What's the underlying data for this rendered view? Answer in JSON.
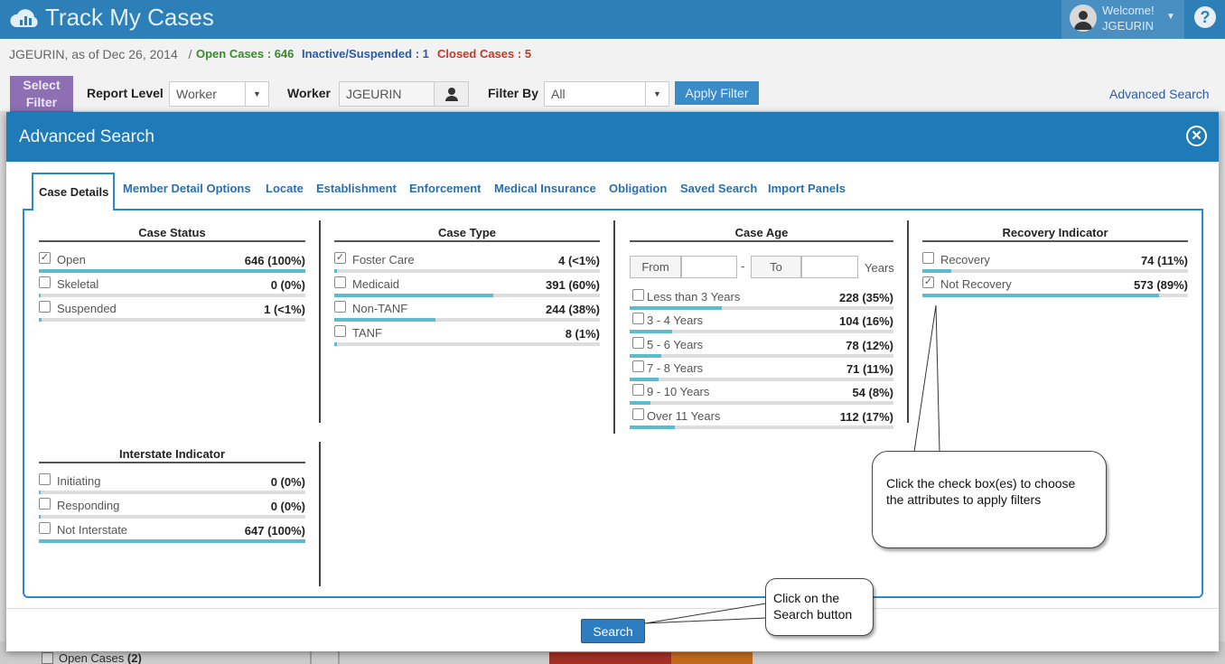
{
  "app": {
    "title": "Track My Cases"
  },
  "user": {
    "welcome": "Welcome!",
    "name": "JGEURIN"
  },
  "subheader": {
    "as_of": "JGEURIN, as of Dec 26, 2014",
    "separator": "/",
    "open_cases": "Open Cases : 646",
    "inactive": "Inactive/Suspended : 1",
    "closed": "Closed Cases : 5"
  },
  "filter_bar": {
    "select_filter": "Select Filter",
    "report_level_label": "Report Level",
    "report_level_value": "Worker",
    "worker_label": "Worker",
    "worker_value": "JGEURIN",
    "filter_by_label": "Filter By",
    "filter_by_value": "All",
    "apply_filter": "Apply Filter",
    "advanced_search": "Advanced Search"
  },
  "background": {
    "open_cases_item": "Open Cases",
    "open_cases_count": "(2)"
  },
  "modal": {
    "title": "Advanced Search",
    "tabs": [
      "Case Details",
      "Member Detail Options",
      "Locate",
      "Establishment",
      "Enforcement",
      "Medical Insurance",
      "Obligation",
      "Saved Search",
      "Import Panels"
    ],
    "active_tab": "Case Details",
    "search_button": "Search"
  },
  "sections": {
    "case_status": {
      "title": "Case Status",
      "items": [
        {
          "label": "Open",
          "value": "646 (100%)",
          "checked": true,
          "fill": 1.0
        },
        {
          "label": "Skeletal",
          "value": "0 (0%)",
          "checked": false,
          "fill": 0.0
        },
        {
          "label": "Suspended",
          "value": "1 (<1%)",
          "checked": false,
          "fill": 0.004
        }
      ]
    },
    "case_type": {
      "title": "Case Type",
      "items": [
        {
          "label": "Foster Care",
          "value": "4 (<1%)",
          "checked": true,
          "fill": 0.01
        },
        {
          "label": "Medicaid",
          "value": "391 (60%)",
          "checked": false,
          "fill": 0.6
        },
        {
          "label": "Non-TANF",
          "value": "244 (38%)",
          "checked": false,
          "fill": 0.38
        },
        {
          "label": "TANF",
          "value": "8 (1%)",
          "checked": false,
          "fill": 0.01
        }
      ]
    },
    "case_age": {
      "title": "Case Age",
      "from_label": "From",
      "dash": "-",
      "to_label": "To",
      "unit": "Years",
      "items": [
        {
          "label": "Less than 3 Years",
          "value": "228 (35%)",
          "checked": false,
          "fill": 0.35
        },
        {
          "label": "3 - 4 Years",
          "value": "104 (16%)",
          "checked": false,
          "fill": 0.16
        },
        {
          "label": "5 - 6 Years",
          "value": "78 (12%)",
          "checked": false,
          "fill": 0.12
        },
        {
          "label": "7 - 8 Years",
          "value": "71 (11%)",
          "checked": false,
          "fill": 0.11
        },
        {
          "label": "9 - 10 Years",
          "value": "54 (8%)",
          "checked": false,
          "fill": 0.08
        },
        {
          "label": "Over 11 Years",
          "value": "112 (17%)",
          "checked": false,
          "fill": 0.17
        }
      ]
    },
    "recovery_indicator": {
      "title": "Recovery Indicator",
      "items": [
        {
          "label": "Recovery",
          "value": "74 (11%)",
          "checked": false,
          "fill": 0.11
        },
        {
          "label": "Not Recovery",
          "value": "573 (89%)",
          "checked": true,
          "fill": 0.89
        }
      ]
    },
    "interstate_indicator": {
      "title": "Interstate Indicator",
      "items": [
        {
          "label": "Initiating",
          "value": "0 (0%)",
          "checked": false,
          "fill": 0.0
        },
        {
          "label": "Responding",
          "value": "0 (0%)",
          "checked": false,
          "fill": 0.0
        },
        {
          "label": "Not Interstate",
          "value": "647 (100%)",
          "checked": false,
          "fill": 1.0
        }
      ]
    }
  },
  "callouts": {
    "checkbox_tip": "Click the check box(es) to choose the attributes to apply filters",
    "search_tip": "Click on the Search button"
  },
  "colors": {
    "header": "#2d7fb8",
    "modal_header": "#1f7ab8",
    "bar_fill": "#5bbccf",
    "accent": "#2a8bc4"
  }
}
